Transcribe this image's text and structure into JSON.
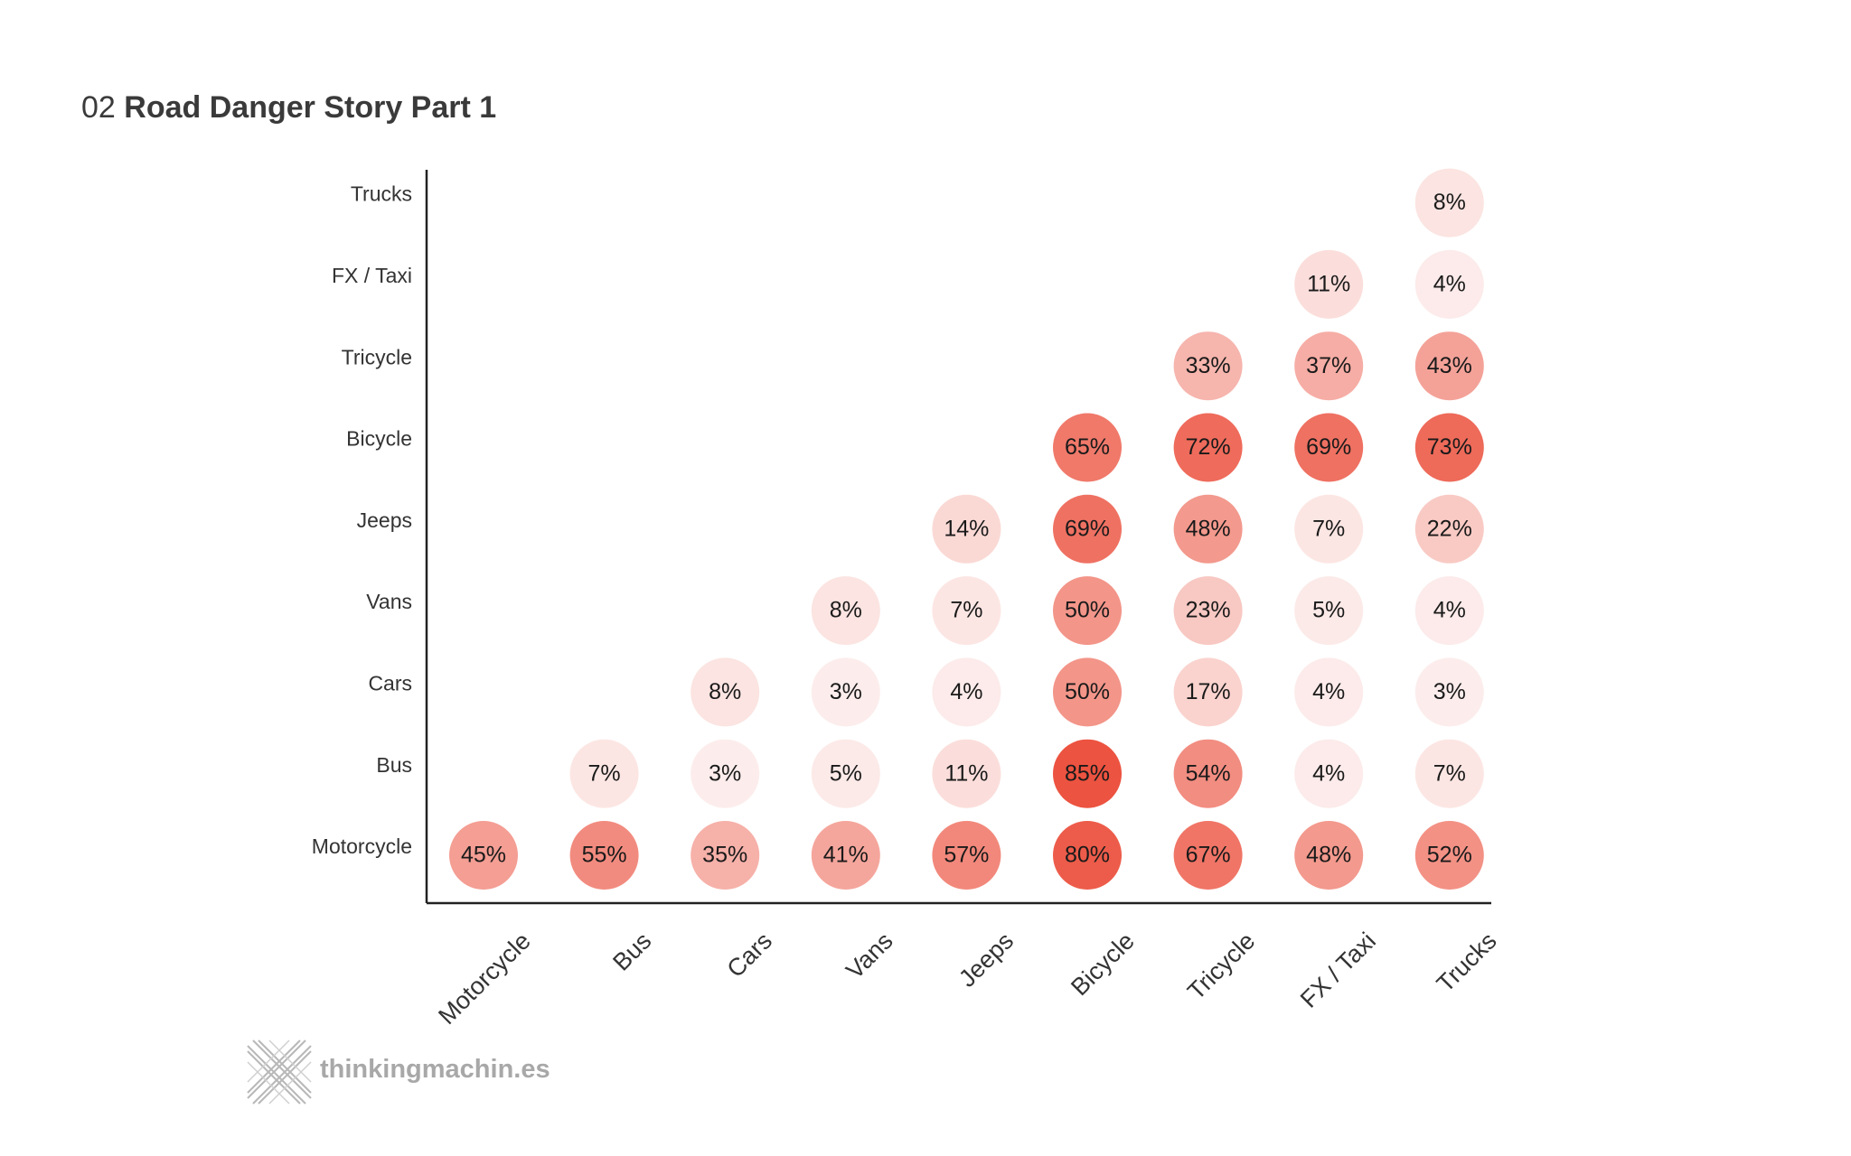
{
  "header": {
    "number": "02",
    "title": "Road Danger Story Part 1"
  },
  "chart_data": {
    "type": "heatmap",
    "title": "Road Danger Story Part 1",
    "x_categories": [
      "Motorcycle",
      "Bus",
      "Cars",
      "Vans",
      "Jeeps",
      "Bicycle",
      "Tricycle",
      "FX / Taxi",
      "Trucks"
    ],
    "y_categories": [
      "Motorcycle",
      "Bus",
      "Cars",
      "Vans",
      "Jeeps",
      "Bicycle",
      "Tricycle",
      "FX / Taxi",
      "Trucks"
    ],
    "unit": "%",
    "cells": [
      {
        "x": "Motorcycle",
        "y": "Motorcycle",
        "value": 45
      },
      {
        "x": "Bus",
        "y": "Motorcycle",
        "value": 55
      },
      {
        "x": "Cars",
        "y": "Motorcycle",
        "value": 35
      },
      {
        "x": "Vans",
        "y": "Motorcycle",
        "value": 41
      },
      {
        "x": "Jeeps",
        "y": "Motorcycle",
        "value": 57
      },
      {
        "x": "Bicycle",
        "y": "Motorcycle",
        "value": 80
      },
      {
        "x": "Tricycle",
        "y": "Motorcycle",
        "value": 67
      },
      {
        "x": "FX / Taxi",
        "y": "Motorcycle",
        "value": 48
      },
      {
        "x": "Trucks",
        "y": "Motorcycle",
        "value": 52
      },
      {
        "x": "Bus",
        "y": "Bus",
        "value": 7
      },
      {
        "x": "Cars",
        "y": "Bus",
        "value": 3
      },
      {
        "x": "Vans",
        "y": "Bus",
        "value": 5
      },
      {
        "x": "Jeeps",
        "y": "Bus",
        "value": 11
      },
      {
        "x": "Bicycle",
        "y": "Bus",
        "value": 85
      },
      {
        "x": "Tricycle",
        "y": "Bus",
        "value": 54
      },
      {
        "x": "FX / Taxi",
        "y": "Bus",
        "value": 4
      },
      {
        "x": "Trucks",
        "y": "Bus",
        "value": 7
      },
      {
        "x": "Cars",
        "y": "Cars",
        "value": 8
      },
      {
        "x": "Vans",
        "y": "Cars",
        "value": 3
      },
      {
        "x": "Jeeps",
        "y": "Cars",
        "value": 4
      },
      {
        "x": "Bicycle",
        "y": "Cars",
        "value": 50
      },
      {
        "x": "Tricycle",
        "y": "Cars",
        "value": 17
      },
      {
        "x": "FX / Taxi",
        "y": "Cars",
        "value": 4
      },
      {
        "x": "Trucks",
        "y": "Cars",
        "value": 3
      },
      {
        "x": "Vans",
        "y": "Vans",
        "value": 8
      },
      {
        "x": "Jeeps",
        "y": "Vans",
        "value": 7
      },
      {
        "x": "Bicycle",
        "y": "Vans",
        "value": 50
      },
      {
        "x": "Tricycle",
        "y": "Vans",
        "value": 23
      },
      {
        "x": "FX / Taxi",
        "y": "Vans",
        "value": 5
      },
      {
        "x": "Trucks",
        "y": "Vans",
        "value": 4
      },
      {
        "x": "Jeeps",
        "y": "Jeeps",
        "value": 14
      },
      {
        "x": "Bicycle",
        "y": "Jeeps",
        "value": 69
      },
      {
        "x": "Tricycle",
        "y": "Jeeps",
        "value": 48
      },
      {
        "x": "FX / Taxi",
        "y": "Jeeps",
        "value": 7
      },
      {
        "x": "Trucks",
        "y": "Jeeps",
        "value": 22
      },
      {
        "x": "Bicycle",
        "y": "Bicycle",
        "value": 65
      },
      {
        "x": "Tricycle",
        "y": "Bicycle",
        "value": 72
      },
      {
        "x": "FX / Taxi",
        "y": "Bicycle",
        "value": 69
      },
      {
        "x": "Trucks",
        "y": "Bicycle",
        "value": 73
      },
      {
        "x": "Tricycle",
        "y": "Tricycle",
        "value": 33
      },
      {
        "x": "FX / Taxi",
        "y": "Tricycle",
        "value": 37
      },
      {
        "x": "Trucks",
        "y": "Tricycle",
        "value": 43
      },
      {
        "x": "FX / Taxi",
        "y": "FX / Taxi",
        "value": 11
      },
      {
        "x": "Trucks",
        "y": "FX / Taxi",
        "value": 4
      },
      {
        "x": "Trucks",
        "y": "Trucks",
        "value": 8
      }
    ],
    "color_low": "#fdf3f2",
    "color_high": "#ec5340"
  },
  "brand": {
    "logo_text": "thinkingmachin.es",
    "logo_color": "#a8a8a8"
  }
}
